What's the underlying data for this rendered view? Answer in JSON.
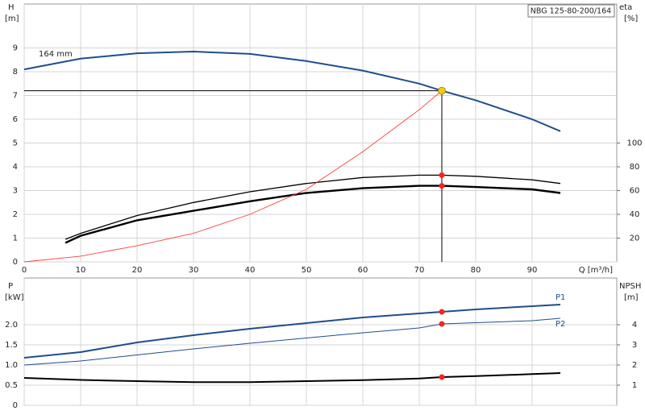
{
  "chart_data": [
    {
      "type": "line",
      "title": "NBG 125-80-200/164",
      "ylabel": "H",
      "yunit": "[m]",
      "y2label": "eta",
      "y2unit": "[%]",
      "xlabel": "Q [m³/h]",
      "xlim": [
        0,
        105
      ],
      "xticks": [
        0,
        10,
        20,
        30,
        40,
        50,
        60,
        70,
        80,
        90
      ],
      "ylim": [
        0,
        10.85
      ],
      "yticks": [
        0,
        1,
        2,
        3,
        4,
        5,
        6,
        7,
        8,
        9
      ],
      "y2lim": [
        0,
        217
      ],
      "y2ticks": [
        20,
        40,
        60,
        80,
        100
      ],
      "grid": true,
      "series": [
        {
          "label": "164 mm",
          "color": "#1f4e8c",
          "width": 2,
          "x": [
            0,
            10,
            20,
            30,
            40,
            50,
            60,
            70,
            74,
            80,
            90,
            95
          ],
          "values": [
            8.1,
            8.55,
            8.78,
            8.85,
            8.75,
            8.45,
            8.05,
            7.5,
            7.2,
            6.8,
            6.0,
            5.5
          ]
        },
        {
          "color": "#000000",
          "width": 1.3,
          "axis": "y2",
          "x": [
            7.3,
            10,
            20,
            30,
            40,
            50,
            60,
            70,
            74,
            80,
            90,
            95
          ],
          "values": [
            19,
            24,
            39,
            50,
            59,
            66,
            71,
            73,
            73,
            72,
            69,
            66
          ]
        },
        {
          "color": "#000000",
          "width": 2.4,
          "axis": "y2",
          "x": [
            7.3,
            10,
            20,
            30,
            40,
            50,
            60,
            70,
            74,
            80,
            90,
            95
          ],
          "values": [
            16,
            22,
            35,
            43,
            51,
            58,
            62,
            64,
            64,
            63,
            61,
            58
          ]
        },
        {
          "color": "#ff4040",
          "width": 0.9,
          "x": [
            0,
            10,
            20,
            30,
            40,
            50,
            60,
            70,
            74
          ],
          "values": [
            0,
            0.24,
            0.68,
            1.2,
            2.0,
            3.05,
            4.64,
            6.4,
            7.2
          ]
        }
      ],
      "operating_point": {
        "x": 74,
        "y": 7.2,
        "color": "#f5c518"
      },
      "points": [
        {
          "x": 74,
          "y": 73,
          "axis": "y2",
          "color": "#ff2020"
        },
        {
          "x": 74,
          "y": 64,
          "axis": "y2",
          "color": "#ff2020"
        }
      ]
    },
    {
      "type": "line",
      "ylabel": "P",
      "yunit": "[kW]",
      "y2label": "NPSH",
      "y2unit": "[m]",
      "xlim": [
        0,
        105
      ],
      "xticks": [
        0,
        10,
        20,
        30,
        40,
        50,
        60,
        70,
        80,
        90
      ],
      "ylim": [
        0,
        3.16
      ],
      "yticks": [
        0,
        0.5,
        {
          "value": 1,
          "label": "1.0"
        },
        1.5,
        {
          "value": 2,
          "label": "2.0"
        }
      ],
      "y2lim": [
        0,
        6.32
      ],
      "y2ticks": [
        1,
        2,
        3,
        4
      ],
      "grid": true,
      "series": [
        {
          "label": "P1",
          "color": "#1f4e8c",
          "width": 2,
          "x": [
            0,
            10,
            20,
            30,
            40,
            50,
            60,
            70,
            74,
            80,
            90,
            95
          ],
          "values": [
            1.18,
            1.32,
            1.56,
            1.74,
            1.9,
            2.04,
            2.18,
            2.28,
            2.32,
            2.38,
            2.46,
            2.5
          ]
        },
        {
          "label": "P2",
          "color": "#1f4e8c",
          "width": 1,
          "x": [
            0,
            10,
            20,
            30,
            40,
            50,
            60,
            70,
            74,
            80,
            90,
            95
          ],
          "values": [
            1.0,
            1.1,
            1.25,
            1.4,
            1.54,
            1.67,
            1.8,
            1.92,
            2.02,
            2.05,
            2.1,
            2.16
          ]
        },
        {
          "color": "#000000",
          "width": 2,
          "axis": "y2",
          "x": [
            0,
            10,
            20,
            30,
            40,
            50,
            60,
            70,
            74,
            80,
            90,
            95
          ],
          "values": [
            1.36,
            1.26,
            1.2,
            1.15,
            1.15,
            1.2,
            1.25,
            1.33,
            1.4,
            1.45,
            1.55,
            1.6
          ]
        }
      ],
      "points": [
        {
          "x": 74,
          "y": 2.32,
          "color": "#ff2020"
        },
        {
          "x": 74,
          "y": 2.02,
          "color": "#ff2020"
        },
        {
          "x": 74,
          "y": 1.4,
          "axis": "y2",
          "color": "#ff2020"
        }
      ]
    }
  ]
}
